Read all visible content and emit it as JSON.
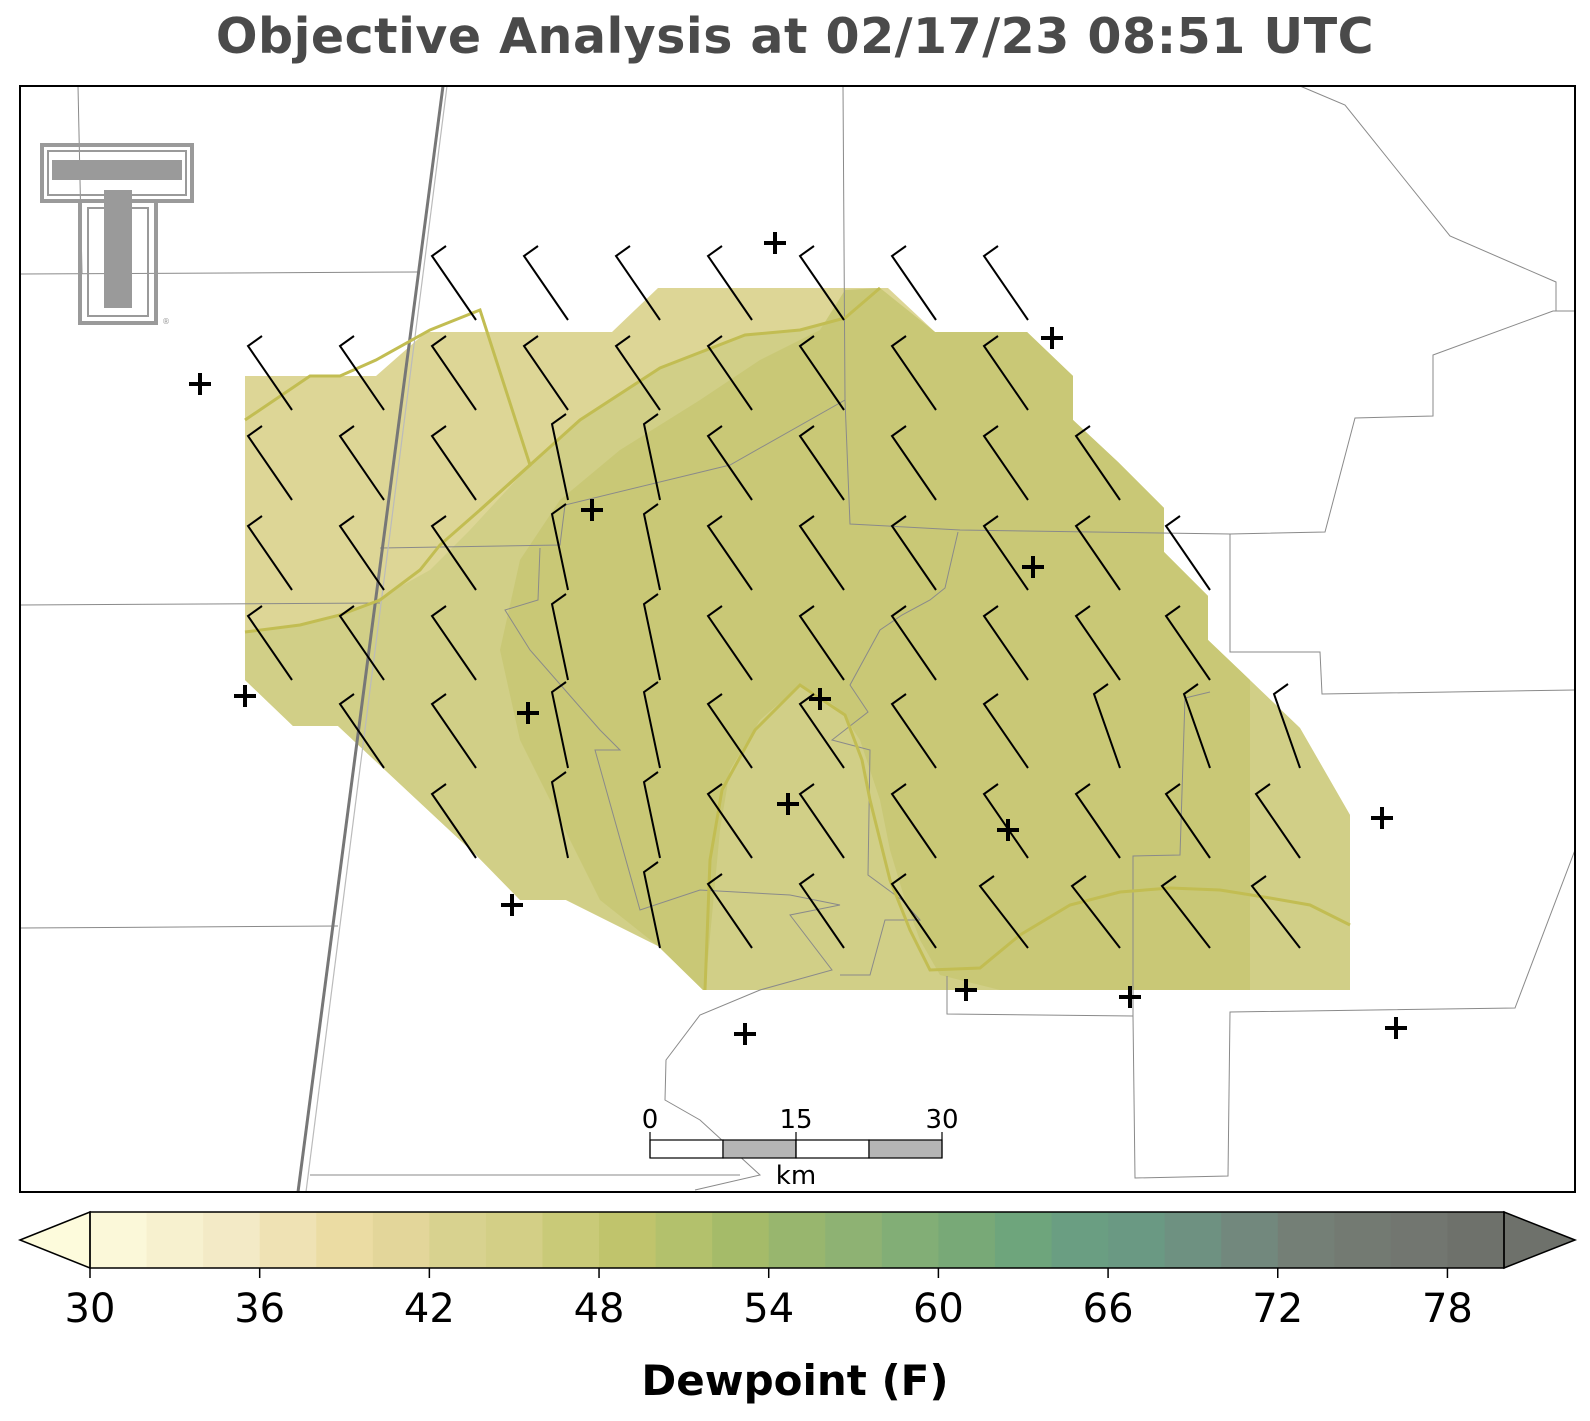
{
  "title": "Objective Analysis at 02/17/23 08:51 UTC",
  "colorbar": {
    "label": "Dewpoint (F)",
    "min": 30,
    "max": 80,
    "step": 2,
    "ticks": [
      30,
      36,
      42,
      48,
      54,
      60,
      66,
      72,
      78
    ],
    "colors": [
      "#fbf8d9",
      "#f7f1cf",
      "#f3eac6",
      "#efe2b4",
      "#ebdca3",
      "#e3d69a",
      "#d8d28f",
      "#d3cf86",
      "#c9ca78",
      "#c0c46c",
      "#b3c16c",
      "#a5bb69",
      "#98b66e",
      "#8eb273",
      "#82ae76",
      "#78a977",
      "#6ea57c",
      "#6a9e82",
      "#6a9983",
      "#6e9181",
      "#72887d",
      "#747f76",
      "#737a72",
      "#727670",
      "#6e716b"
    ],
    "extend_low_color": "#fdfbdc",
    "extend_high_color": "#6e716b"
  },
  "scalebar": {
    "labels": [
      "0",
      "15",
      "30"
    ],
    "unit": "km"
  },
  "analysis": {
    "dominant_dewpoint_range_f": [
      42,
      48
    ],
    "contour_color": "#c2bd52",
    "wind_barbs_reported_knots": "5-15"
  },
  "stations_count": 17,
  "logo": "texas-tech-double-t"
}
